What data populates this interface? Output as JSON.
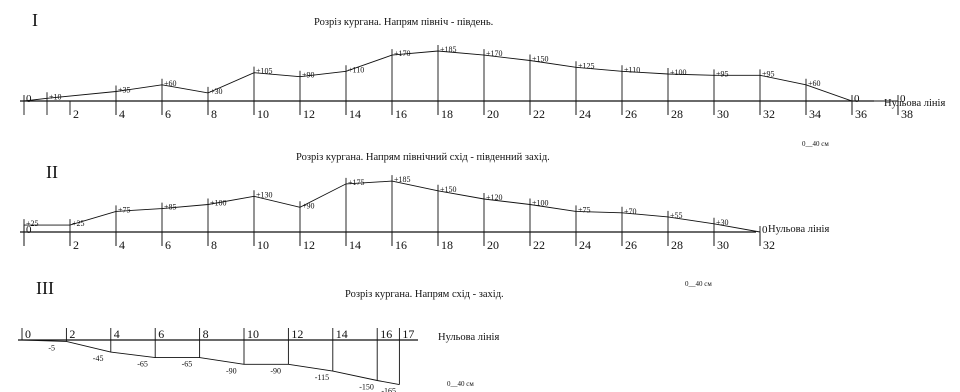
{
  "sections": [
    {
      "numeral": "I",
      "title": "Розріз кургана. Напрям північ - південь.",
      "baseline_label": "Нульова лінія",
      "scale_label": "0__40 см",
      "axis_labels": [
        "2",
        "4",
        "6",
        "8",
        "10",
        "12",
        "14",
        "16",
        "18",
        "20",
        "22",
        "24",
        "26",
        "28",
        "30",
        "32",
        "34",
        "36",
        "38"
      ],
      "profile": [
        {
          "station": 0,
          "value": 0,
          "label": "0"
        },
        {
          "station": 1,
          "value": 10,
          "label": "+10"
        },
        {
          "station": 4,
          "value": 35,
          "label": "+35"
        },
        {
          "station": 6,
          "value": 60,
          "label": "+60"
        },
        {
          "station": 8,
          "value": 30,
          "label": "+30"
        },
        {
          "station": 10,
          "value": 105,
          "label": "+105"
        },
        {
          "station": 12,
          "value": 90,
          "label": "+90"
        },
        {
          "station": 14,
          "value": 110,
          "label": "+110"
        },
        {
          "station": 16,
          "value": 170,
          "label": "+170"
        },
        {
          "station": 18,
          "value": 185,
          "label": "+185"
        },
        {
          "station": 20,
          "value": 170,
          "label": "+170"
        },
        {
          "station": 22,
          "value": 150,
          "label": "+150"
        },
        {
          "station": 24,
          "value": 125,
          "label": "+125"
        },
        {
          "station": 26,
          "value": 110,
          "label": "+110"
        },
        {
          "station": 28,
          "value": 100,
          "label": "+100"
        },
        {
          "station": 30,
          "value": 95,
          "label": "+95"
        },
        {
          "station": 32,
          "value": 95,
          "label": "+95"
        },
        {
          "station": 34,
          "value": 60,
          "label": "+60"
        },
        {
          "station": 36,
          "value": 0,
          "label": "0"
        },
        {
          "station": 38,
          "value": 0,
          "label": "0"
        }
      ]
    },
    {
      "numeral": "II",
      "title": "Розріз кургана. Напрям північний схід - південний захід.",
      "baseline_label": "Нульова лінія",
      "scale_label": "0__40 см",
      "axis_labels": [
        "2",
        "4",
        "6",
        "8",
        "10",
        "12",
        "14",
        "16",
        "18",
        "20",
        "22",
        "24",
        "26",
        "28",
        "30",
        "32"
      ],
      "profile": [
        {
          "station": 0,
          "value": 0,
          "label": "0"
        },
        {
          "station": 0,
          "value": 25,
          "label": "+25"
        },
        {
          "station": 2,
          "value": 25,
          "label": "+25"
        },
        {
          "station": 4,
          "value": 75,
          "label": "+75"
        },
        {
          "station": 6,
          "value": 85,
          "label": "+85"
        },
        {
          "station": 8,
          "value": 100,
          "label": "+100"
        },
        {
          "station": 10,
          "value": 130,
          "label": "+130"
        },
        {
          "station": 12,
          "value": 90,
          "label": "+90"
        },
        {
          "station": 14,
          "value": 175,
          "label": "+175"
        },
        {
          "station": 16,
          "value": 185,
          "label": "+185"
        },
        {
          "station": 18,
          "value": 150,
          "label": "+150"
        },
        {
          "station": 20,
          "value": 120,
          "label": "+120"
        },
        {
          "station": 22,
          "value": 100,
          "label": "+100"
        },
        {
          "station": 24,
          "value": 75,
          "label": "+75"
        },
        {
          "station": 26,
          "value": 70,
          "label": "+70"
        },
        {
          "station": 28,
          "value": 55,
          "label": "+55"
        },
        {
          "station": 30,
          "value": 30,
          "label": "+30"
        },
        {
          "station": 32,
          "value": 0,
          "label": "0"
        }
      ]
    },
    {
      "numeral": "III",
      "title": "Розріз кургана. Напрям схід - захід.",
      "baseline_label": "Нульова лінія",
      "scale_label": "0__40 см",
      "axis_labels": [
        "0",
        "2",
        "4",
        "6",
        "8",
        "10",
        "12",
        "14",
        "16",
        "17"
      ],
      "profile": [
        {
          "station": 0,
          "value": 0,
          "label": ""
        },
        {
          "station": 2,
          "value": -5,
          "label": "-5"
        },
        {
          "station": 4,
          "value": -45,
          "label": "-45"
        },
        {
          "station": 6,
          "value": -65,
          "label": "-65"
        },
        {
          "station": 8,
          "value": -65,
          "label": "-65"
        },
        {
          "station": 10,
          "value": -90,
          "label": "-90"
        },
        {
          "station": 12,
          "value": -90,
          "label": "-90"
        },
        {
          "station": 14,
          "value": -115,
          "label": "-115"
        },
        {
          "station": 16,
          "value": -150,
          "label": "-150"
        },
        {
          "station": 17,
          "value": -165,
          "label": "-165"
        }
      ]
    }
  ]
}
